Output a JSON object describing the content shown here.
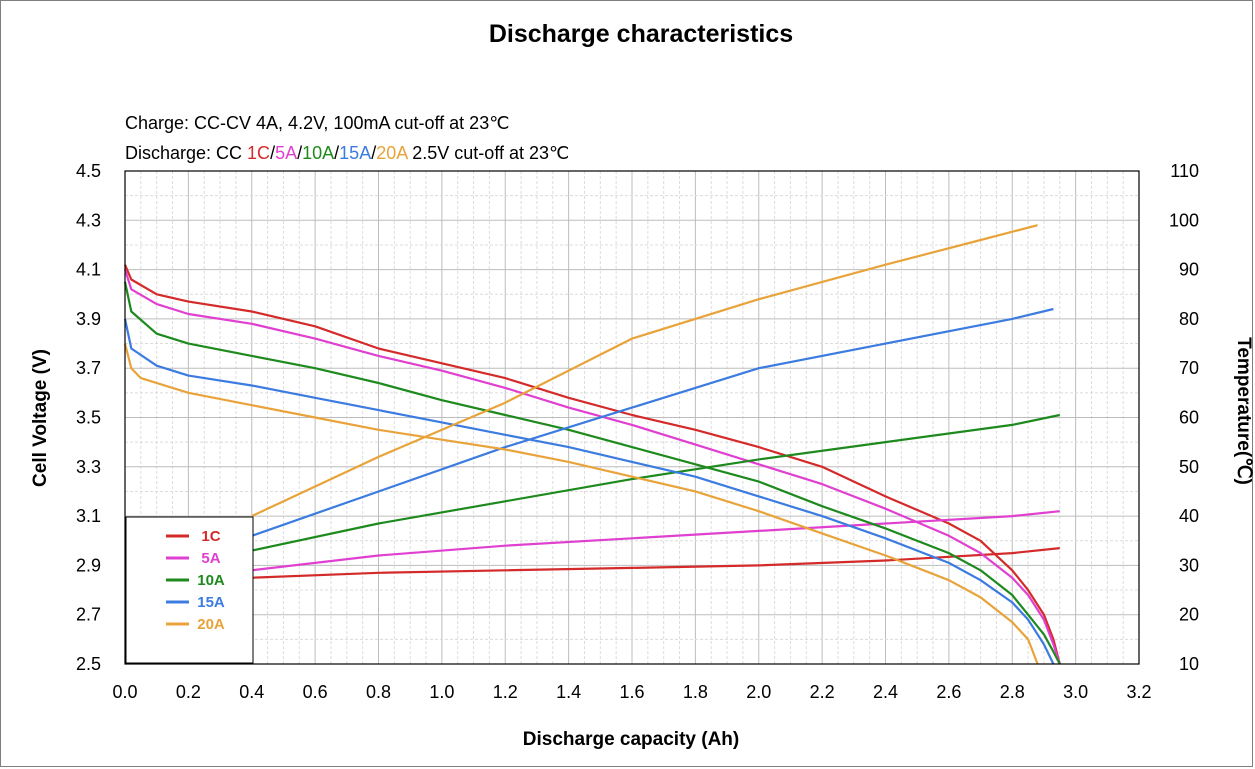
{
  "chart_data": {
    "type": "line",
    "title": "Discharge characteristics",
    "notes": {
      "charge": "Charge: CC-CV 4A, 4.2V, 100mA cut-off at 23℃",
      "discharge_prefix": "Discharge: CC ",
      "discharge_rates": [
        "1C",
        "5A",
        "10A",
        "15A",
        "20A"
      ],
      "separator": "/",
      "discharge_suffix": " 2.5V cut-off at 23℃"
    },
    "xlabel": "Discharge capacity (Ah)",
    "ylabel": "Cell Voltage (V)",
    "y2label": "Temperature(℃)",
    "xlim": [
      0.0,
      3.2
    ],
    "ylim": [
      2.5,
      4.5
    ],
    "y2lim": [
      10,
      110
    ],
    "xticks": [
      "0.0",
      "0.2",
      "0.4",
      "0.6",
      "0.8",
      "1.0",
      "1.2",
      "1.4",
      "1.6",
      "1.8",
      "2.0",
      "2.2",
      "2.4",
      "2.6",
      "2.8",
      "3.0",
      "3.2"
    ],
    "yticks": [
      "2.5",
      "2.7",
      "2.9",
      "3.1",
      "3.3",
      "3.5",
      "3.7",
      "3.9",
      "4.1",
      "4.3",
      "4.5"
    ],
    "y2ticks": [
      "10",
      "20",
      "30",
      "40",
      "50",
      "60",
      "70",
      "80",
      "90",
      "100",
      "110"
    ],
    "grid": true,
    "legend_position": "bottom-left",
    "series": [
      {
        "name": "1C",
        "color": "#d42a2a",
        "voltage": [
          [
            0.0,
            4.12
          ],
          [
            0.02,
            4.06
          ],
          [
            0.1,
            4.0
          ],
          [
            0.2,
            3.97
          ],
          [
            0.4,
            3.93
          ],
          [
            0.6,
            3.87
          ],
          [
            0.8,
            3.78
          ],
          [
            1.0,
            3.72
          ],
          [
            1.2,
            3.66
          ],
          [
            1.4,
            3.58
          ],
          [
            1.6,
            3.51
          ],
          [
            1.8,
            3.45
          ],
          [
            2.0,
            3.38
          ],
          [
            2.2,
            3.3
          ],
          [
            2.4,
            3.18
          ],
          [
            2.6,
            3.07
          ],
          [
            2.7,
            3.0
          ],
          [
            2.8,
            2.88
          ],
          [
            2.85,
            2.8
          ],
          [
            2.9,
            2.7
          ],
          [
            2.93,
            2.6
          ],
          [
            2.95,
            2.5
          ]
        ],
        "temperature": [
          [
            0.4,
            27.5
          ],
          [
            0.8,
            28.5
          ],
          [
            1.2,
            29
          ],
          [
            1.6,
            29.5
          ],
          [
            2.0,
            30
          ],
          [
            2.4,
            31
          ],
          [
            2.8,
            32.5
          ],
          [
            2.95,
            33.5
          ]
        ]
      },
      {
        "name": "5A",
        "color": "#e040d0",
        "voltage": [
          [
            0.0,
            4.1
          ],
          [
            0.02,
            4.02
          ],
          [
            0.1,
            3.96
          ],
          [
            0.2,
            3.92
          ],
          [
            0.4,
            3.88
          ],
          [
            0.6,
            3.82
          ],
          [
            0.8,
            3.75
          ],
          [
            1.0,
            3.69
          ],
          [
            1.2,
            3.62
          ],
          [
            1.4,
            3.54
          ],
          [
            1.6,
            3.47
          ],
          [
            1.8,
            3.39
          ],
          [
            2.0,
            3.31
          ],
          [
            2.2,
            3.23
          ],
          [
            2.4,
            3.13
          ],
          [
            2.6,
            3.02
          ],
          [
            2.7,
            2.95
          ],
          [
            2.8,
            2.85
          ],
          [
            2.85,
            2.78
          ],
          [
            2.9,
            2.68
          ],
          [
            2.93,
            2.58
          ],
          [
            2.95,
            2.5
          ]
        ],
        "temperature": [
          [
            0.4,
            29
          ],
          [
            0.8,
            32
          ],
          [
            1.2,
            34
          ],
          [
            1.6,
            35.5
          ],
          [
            2.0,
            37
          ],
          [
            2.4,
            38.5
          ],
          [
            2.8,
            40
          ],
          [
            2.95,
            41
          ]
        ]
      },
      {
        "name": "10A",
        "color": "#1e8a1e",
        "voltage": [
          [
            0.0,
            4.05
          ],
          [
            0.02,
            3.93
          ],
          [
            0.1,
            3.84
          ],
          [
            0.2,
            3.8
          ],
          [
            0.4,
            3.75
          ],
          [
            0.6,
            3.7
          ],
          [
            0.8,
            3.64
          ],
          [
            1.0,
            3.57
          ],
          [
            1.2,
            3.51
          ],
          [
            1.4,
            3.45
          ],
          [
            1.6,
            3.38
          ],
          [
            1.8,
            3.31
          ],
          [
            2.0,
            3.24
          ],
          [
            2.2,
            3.14
          ],
          [
            2.4,
            3.05
          ],
          [
            2.6,
            2.95
          ],
          [
            2.7,
            2.88
          ],
          [
            2.8,
            2.78
          ],
          [
            2.85,
            2.7
          ],
          [
            2.9,
            2.62
          ],
          [
            2.93,
            2.55
          ],
          [
            2.95,
            2.5
          ]
        ],
        "temperature": [
          [
            0.4,
            33
          ],
          [
            0.8,
            38.5
          ],
          [
            1.2,
            43
          ],
          [
            1.6,
            47.5
          ],
          [
            2.0,
            51.5
          ],
          [
            2.4,
            55
          ],
          [
            2.8,
            58.5
          ],
          [
            2.95,
            60.5
          ]
        ]
      },
      {
        "name": "15A",
        "color": "#3c7be0",
        "voltage": [
          [
            0.0,
            3.9
          ],
          [
            0.02,
            3.78
          ],
          [
            0.1,
            3.71
          ],
          [
            0.2,
            3.67
          ],
          [
            0.4,
            3.63
          ],
          [
            0.6,
            3.58
          ],
          [
            0.8,
            3.53
          ],
          [
            1.0,
            3.48
          ],
          [
            1.2,
            3.43
          ],
          [
            1.4,
            3.38
          ],
          [
            1.6,
            3.32
          ],
          [
            1.8,
            3.26
          ],
          [
            2.0,
            3.18
          ],
          [
            2.2,
            3.1
          ],
          [
            2.4,
            3.01
          ],
          [
            2.6,
            2.91
          ],
          [
            2.7,
            2.84
          ],
          [
            2.8,
            2.75
          ],
          [
            2.85,
            2.68
          ],
          [
            2.9,
            2.58
          ],
          [
            2.93,
            2.5
          ]
        ],
        "temperature": [
          [
            0.4,
            36
          ],
          [
            0.8,
            45
          ],
          [
            1.2,
            54
          ],
          [
            1.6,
            62
          ],
          [
            2.0,
            70
          ],
          [
            2.4,
            75
          ],
          [
            2.8,
            80
          ],
          [
            2.93,
            82
          ]
        ]
      },
      {
        "name": "20A",
        "color": "#e8a33a",
        "voltage": [
          [
            0.0,
            3.8
          ],
          [
            0.02,
            3.7
          ],
          [
            0.05,
            3.66
          ],
          [
            0.2,
            3.6
          ],
          [
            0.4,
            3.55
          ],
          [
            0.6,
            3.5
          ],
          [
            0.8,
            3.45
          ],
          [
            1.0,
            3.41
          ],
          [
            1.2,
            3.37
          ],
          [
            1.4,
            3.32
          ],
          [
            1.6,
            3.26
          ],
          [
            1.8,
            3.2
          ],
          [
            2.0,
            3.12
          ],
          [
            2.2,
            3.03
          ],
          [
            2.4,
            2.94
          ],
          [
            2.6,
            2.84
          ],
          [
            2.7,
            2.77
          ],
          [
            2.8,
            2.67
          ],
          [
            2.85,
            2.6
          ],
          [
            2.88,
            2.5
          ]
        ],
        "temperature": [
          [
            0.4,
            40
          ],
          [
            0.8,
            52
          ],
          [
            1.2,
            63
          ],
          [
            1.6,
            76
          ],
          [
            2.0,
            84
          ],
          [
            2.4,
            91
          ],
          [
            2.7,
            96
          ],
          [
            2.88,
            99
          ]
        ]
      }
    ]
  }
}
